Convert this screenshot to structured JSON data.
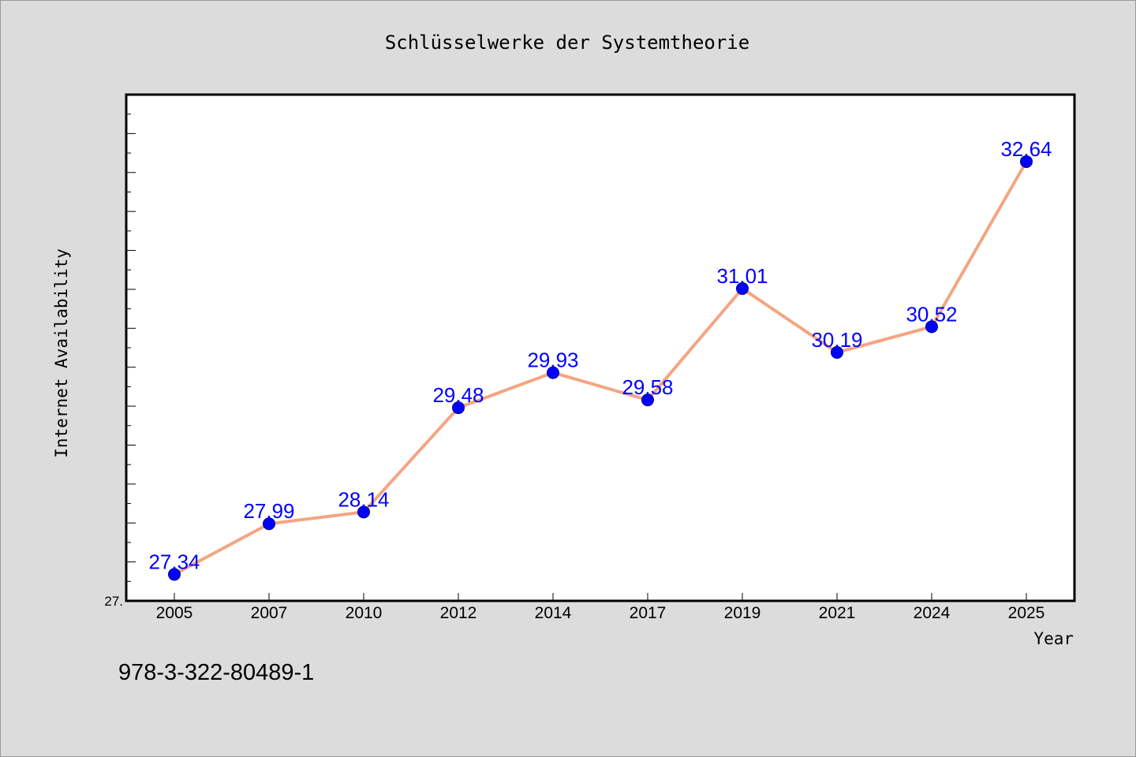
{
  "chart_data": {
    "type": "line",
    "title": "Schlüsselwerke der Systemtheorie",
    "xlabel": "Year",
    "ylabel": "Internet Availability",
    "categories": [
      "2005",
      "2007",
      "2010",
      "2012",
      "2014",
      "2017",
      "2019",
      "2021",
      "2024",
      "2025"
    ],
    "series": [
      {
        "values": [
          27.34,
          27.99,
          28.14,
          29.48,
          29.93,
          29.58,
          31.01,
          30.19,
          30.52,
          32.64
        ]
      }
    ],
    "data_labels": [
      "27.34",
      "27.99",
      "28.14",
      "29.48",
      "29.93",
      "29.58",
      "31.01",
      "30.19",
      "30.52",
      "32.64"
    ],
    "ylim": [
      27.0,
      33.5
    ],
    "ytick_label": "27.",
    "grid": false,
    "line_color": "#f4a582",
    "marker_color": "#0000ff",
    "label_color": "#0000ff"
  },
  "footer": {
    "isbn": "978-3-322-80489-1"
  }
}
